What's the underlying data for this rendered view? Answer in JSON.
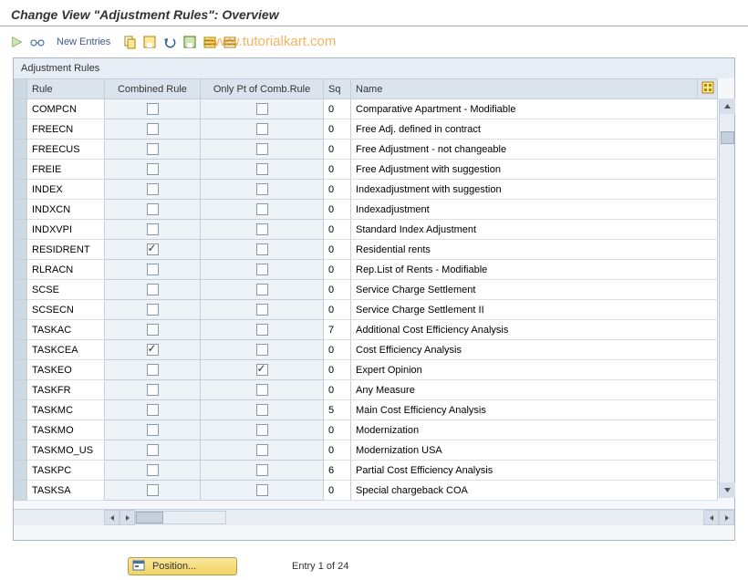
{
  "title": "Change View \"Adjustment Rules\": Overview",
  "toolbar": {
    "new_entries_label": "New Entries"
  },
  "watermark": "www.tutorialkart.com",
  "panel": {
    "header": "Adjustment Rules",
    "columns": {
      "rule": "Rule",
      "combined": "Combined Rule",
      "only": "Only Pt of Comb.Rule",
      "sq": "Sq",
      "name": "Name"
    },
    "rows": [
      {
        "rule": "COMPCN",
        "combined": false,
        "only": false,
        "sq": "0",
        "name": "Comparative Apartment - Modifiable"
      },
      {
        "rule": "FREECN",
        "combined": false,
        "only": false,
        "sq": "0",
        "name": "Free Adj. defined in contract"
      },
      {
        "rule": "FREECUS",
        "combined": false,
        "only": false,
        "sq": "0",
        "name": "Free Adjustment - not changeable"
      },
      {
        "rule": "FREIE",
        "combined": false,
        "only": false,
        "sq": "0",
        "name": "Free Adjustment with suggestion"
      },
      {
        "rule": "INDEX",
        "combined": false,
        "only": false,
        "sq": "0",
        "name": "Indexadjustment with suggestion"
      },
      {
        "rule": "INDXCN",
        "combined": false,
        "only": false,
        "sq": "0",
        "name": "Indexadjustment"
      },
      {
        "rule": "INDXVPI",
        "combined": false,
        "only": false,
        "sq": "0",
        "name": "Standard Index Adjustment"
      },
      {
        "rule": "RESIDRENT",
        "combined": true,
        "only": false,
        "sq": "0",
        "name": "Residential rents"
      },
      {
        "rule": "RLRACN",
        "combined": false,
        "only": false,
        "sq": "0",
        "name": "Rep.List of Rents - Modifiable"
      },
      {
        "rule": "SCSE",
        "combined": false,
        "only": false,
        "sq": "0",
        "name": "Service Charge Settlement"
      },
      {
        "rule": "SCSECN",
        "combined": false,
        "only": false,
        "sq": "0",
        "name": "Service Charge Settlement II"
      },
      {
        "rule": "TASKAC",
        "combined": false,
        "only": false,
        "sq": "7",
        "name": "Additional Cost Efficiency Analysis"
      },
      {
        "rule": "TASKCEA",
        "combined": true,
        "only": false,
        "sq": "0",
        "name": "Cost Efficiency Analysis"
      },
      {
        "rule": "TASKEO",
        "combined": false,
        "only": true,
        "sq": "0",
        "name": "Expert Opinion"
      },
      {
        "rule": "TASKFR",
        "combined": false,
        "only": false,
        "sq": "0",
        "name": "Any Measure"
      },
      {
        "rule": "TASKMC",
        "combined": false,
        "only": false,
        "sq": "5",
        "name": "Main Cost Efficiency Analysis"
      },
      {
        "rule": "TASKMO",
        "combined": false,
        "only": false,
        "sq": "0",
        "name": "Modernization"
      },
      {
        "rule": "TASKMO_US",
        "combined": false,
        "only": false,
        "sq": "0",
        "name": "Modernization USA"
      },
      {
        "rule": "TASKPC",
        "combined": false,
        "only": false,
        "sq": "6",
        "name": "Partial Cost Efficiency Analysis"
      },
      {
        "rule": "TASKSA",
        "combined": false,
        "only": false,
        "sq": "0",
        "name": "Special chargeback COA"
      }
    ]
  },
  "footer": {
    "position_label": "Position...",
    "entry_text": "Entry 1 of 24"
  },
  "colors": {
    "accent": "#3a5a8a",
    "watermark": "#f5a542",
    "header_bg": "#dbe4ed",
    "cell_bg": "#eef3f8",
    "white_cell": "#ffffff",
    "border": "#c3cfda"
  }
}
